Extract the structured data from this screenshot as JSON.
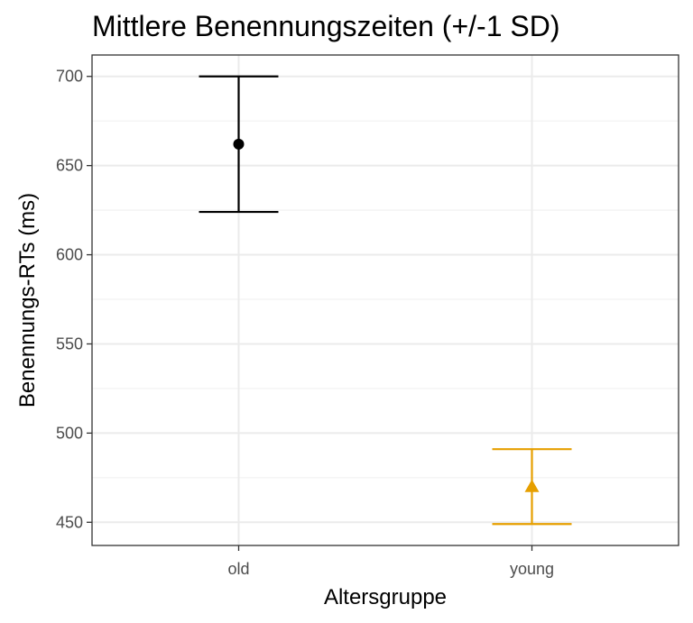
{
  "chart_data": {
    "type": "scatter",
    "title": "Mittlere Benennungszeiten (+/-1 SD)",
    "xlabel": "Altersgruppe",
    "ylabel": "Benennungs-RTs (ms)",
    "categories": [
      "old",
      "young"
    ],
    "ylim": [
      437,
      712
    ],
    "yticks": [
      450,
      500,
      550,
      600,
      650,
      700
    ],
    "grid": true,
    "series": [
      {
        "category": "old",
        "mean": 662,
        "lower": 624,
        "upper": 700,
        "color": "#000000",
        "marker": "circle"
      },
      {
        "category": "young",
        "mean": 470,
        "lower": 449,
        "upper": 491,
        "color": "#E69F00",
        "marker": "triangle"
      }
    ]
  }
}
